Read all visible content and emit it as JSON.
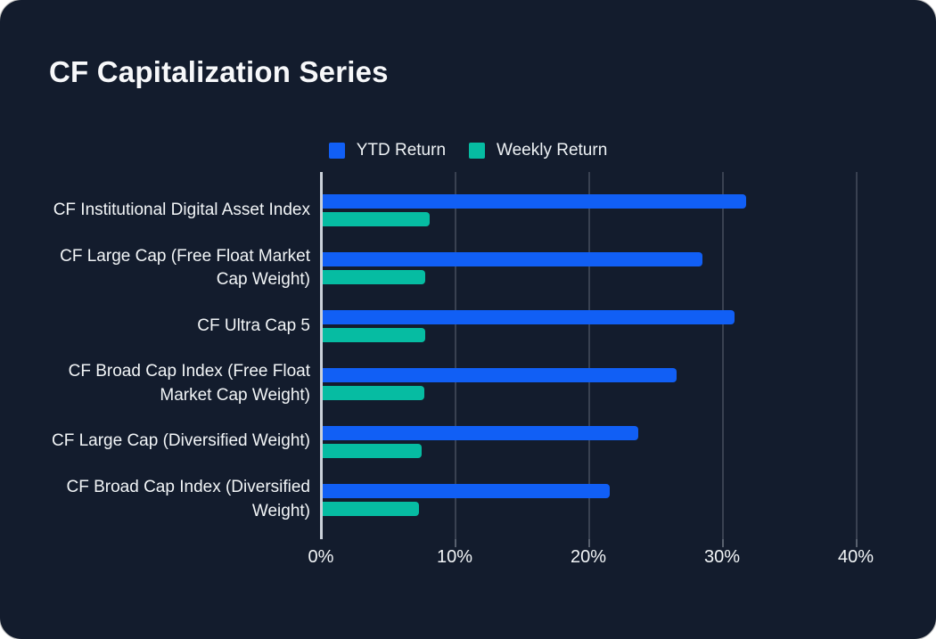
{
  "page": {
    "title": "CF Capitalization Series"
  },
  "legend": {
    "items": [
      {
        "label": "YTD Return",
        "color": "#115FF5"
      },
      {
        "label": "Weekly Return",
        "color": "#06BCA2"
      }
    ]
  },
  "colors": {
    "card_background": "#131C2D",
    "page_background": "#FFFFFF",
    "grid_line": "#394151",
    "axis_line": "#CBD1D9",
    "tick": "#59616F",
    "text": "#F2F5F7",
    "ytd_blue": "#115FF5",
    "weekly_teal": "#06BCA2"
  },
  "chart_data": {
    "type": "bar",
    "orientation": "horizontal",
    "title": "CF Capitalization Series",
    "categories": [
      "CF Institutional Digital Asset Index",
      "CF Large Cap (Free Float Market Cap Weight)",
      "CF Ultra Cap 5",
      "CF Broad Cap Index (Free Float Market Cap Weight)",
      "CF Large Cap (Diversified Weight)",
      "CF Broad Cap Index (Diversified Weight)"
    ],
    "series": [
      {
        "name": "YTD Return",
        "color": "#115FF5",
        "values": [
          31.8,
          28.5,
          30.9,
          26.6,
          23.7,
          21.6
        ]
      },
      {
        "name": "Weekly Return",
        "color": "#06BCA2",
        "values": [
          8.1,
          7.8,
          7.8,
          7.7,
          7.5,
          7.3
        ]
      }
    ],
    "x_ticks": [
      "0%",
      "10%",
      "20%",
      "30%",
      "40%"
    ],
    "x_tick_values": [
      0,
      10,
      20,
      30,
      40
    ],
    "xlim": [
      0,
      43.33
    ],
    "grid": "vertical",
    "legend_position": "top",
    "unit": "%"
  }
}
